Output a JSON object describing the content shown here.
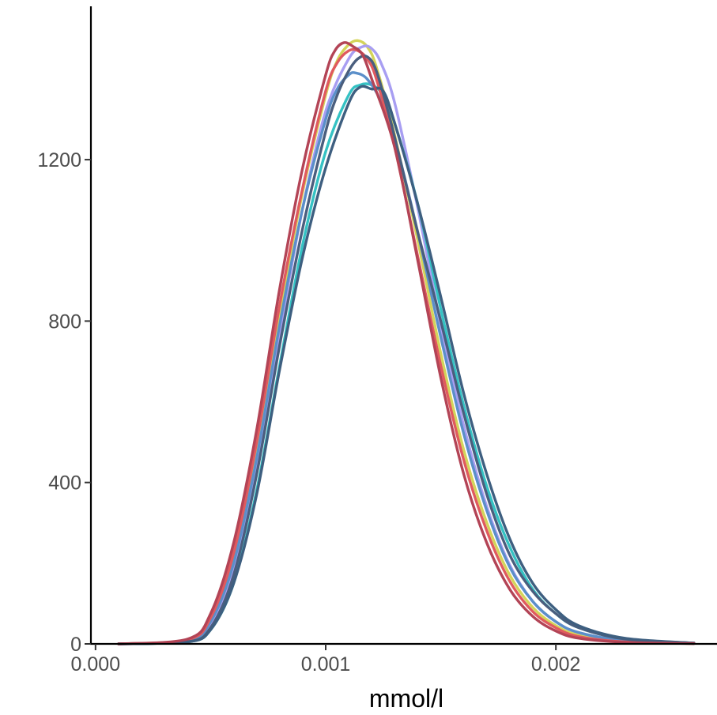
{
  "chart_data": {
    "type": "line",
    "title": "",
    "xlabel": "mmol/l",
    "ylabel": "",
    "xlim": [
      -2e-05,
      0.0027
    ],
    "ylim": [
      0,
      1580
    ],
    "x_ticks": [
      0.0,
      0.001,
      0.002
    ],
    "x_tick_labels": [
      "0.000",
      "0.001",
      "0.002"
    ],
    "y_ticks": [
      0,
      400,
      800,
      1200
    ],
    "y_tick_labels": [
      "0",
      "400",
      "800",
      "1200"
    ],
    "grid": false,
    "legend": "none",
    "series": [
      {
        "color": "#d4d45a",
        "x": [
          0.0001,
          0.0004,
          0.0005,
          0.0006,
          0.0007,
          0.0008,
          0.0009,
          0.001,
          0.00105,
          0.0011,
          0.00114,
          0.00118,
          0.00122,
          0.0013,
          0.0014,
          0.0015,
          0.0016,
          0.0017,
          0.0018,
          0.0019,
          0.002,
          0.0021,
          0.0023,
          0.0026
        ],
        "y": [
          0,
          10,
          60,
          210,
          480,
          820,
          1120,
          1360,
          1445,
          1485,
          1495,
          1480,
          1430,
          1260,
          1000,
          720,
          480,
          300,
          170,
          90,
          45,
          22,
          6,
          1
        ]
      },
      {
        "color": "#a89ef2",
        "x": [
          0.0001,
          0.0004,
          0.0005,
          0.0006,
          0.0007,
          0.0008,
          0.0009,
          0.001,
          0.0011,
          0.00116,
          0.0012,
          0.00124,
          0.0013,
          0.0014,
          0.0015,
          0.0016,
          0.0017,
          0.0018,
          0.0019,
          0.002,
          0.0021,
          0.0023,
          0.0026
        ],
        "y": [
          0,
          6,
          45,
          180,
          440,
          770,
          1080,
          1320,
          1450,
          1480,
          1475,
          1440,
          1340,
          1080,
          790,
          540,
          340,
          195,
          105,
          55,
          28,
          8,
          1
        ]
      },
      {
        "color": "#35c2c4",
        "x": [
          0.0001,
          0.0004,
          0.0005,
          0.0006,
          0.0007,
          0.0008,
          0.0009,
          0.001,
          0.0011,
          0.00115,
          0.0012,
          0.00125,
          0.0013,
          0.0014,
          0.0015,
          0.0016,
          0.0017,
          0.0018,
          0.0019,
          0.002,
          0.0021,
          0.0023,
          0.0026
        ],
        "y": [
          0,
          5,
          35,
          150,
          380,
          690,
          990,
          1220,
          1360,
          1385,
          1385,
          1360,
          1290,
          1090,
          830,
          590,
          390,
          240,
          135,
          75,
          40,
          12,
          2
        ]
      },
      {
        "color": "#5b8fc9",
        "x": [
          0.0001,
          0.0004,
          0.0005,
          0.0006,
          0.0007,
          0.0008,
          0.0009,
          0.001,
          0.00105,
          0.0011,
          0.00113,
          0.00118,
          0.00124,
          0.0013,
          0.0014,
          0.0015,
          0.0016,
          0.0017,
          0.0018,
          0.0019,
          0.002,
          0.0021,
          0.0023,
          0.0026
        ],
        "y": [
          0,
          8,
          55,
          200,
          460,
          790,
          1080,
          1300,
          1375,
          1410,
          1415,
          1400,
          1345,
          1250,
          1020,
          760,
          520,
          330,
          190,
          105,
          55,
          28,
          8,
          1
        ]
      },
      {
        "color": "#e05a5e",
        "x": [
          0.0001,
          0.0004,
          0.0005,
          0.0006,
          0.0007,
          0.0008,
          0.0009,
          0.001,
          0.00105,
          0.0011,
          0.00114,
          0.00118,
          0.00122,
          0.0013,
          0.0014,
          0.0015,
          0.0016,
          0.0017,
          0.0018,
          0.0019,
          0.002,
          0.0021,
          0.0023,
          0.0026
        ],
        "y": [
          0,
          10,
          65,
          225,
          500,
          840,
          1130,
          1370,
          1440,
          1470,
          1470,
          1450,
          1400,
          1230,
          960,
          690,
          455,
          280,
          155,
          80,
          40,
          18,
          5,
          1
        ]
      },
      {
        "color": "#4a5e7e",
        "x": [
          0.0001,
          0.0004,
          0.0005,
          0.0006,
          0.0007,
          0.0008,
          0.0009,
          0.001,
          0.00105,
          0.0011,
          0.00114,
          0.00118,
          0.00122,
          0.00128,
          0.00134,
          0.0014,
          0.0015,
          0.0016,
          0.0017,
          0.0018,
          0.0019,
          0.002,
          0.0021,
          0.0023,
          0.0026
        ],
        "y": [
          0,
          5,
          40,
          170,
          420,
          740,
          1030,
          1270,
          1360,
          1420,
          1450,
          1455,
          1420,
          1300,
          1160,
          1020,
          800,
          570,
          370,
          220,
          130,
          75,
          40,
          12,
          2
        ]
      },
      {
        "color": "#3e5f80",
        "x": [
          0.0001,
          0.0004,
          0.0005,
          0.0006,
          0.0007,
          0.0008,
          0.0009,
          0.001,
          0.0011,
          0.00115,
          0.0012,
          0.00125,
          0.0013,
          0.0014,
          0.0015,
          0.0016,
          0.0017,
          0.0018,
          0.0019,
          0.002,
          0.0021,
          0.0023,
          0.0026
        ],
        "y": [
          0,
          5,
          35,
          150,
          370,
          680,
          960,
          1180,
          1340,
          1380,
          1375,
          1370,
          1290,
          1090,
          860,
          620,
          420,
          260,
          150,
          85,
          45,
          14,
          2
        ]
      },
      {
        "color": "#b34456",
        "x": [
          0.0001,
          0.0004,
          0.0005,
          0.0006,
          0.0007,
          0.0008,
          0.0009,
          0.001,
          0.00104,
          0.00108,
          0.00112,
          0.00116,
          0.0012,
          0.0013,
          0.0014,
          0.0015,
          0.0016,
          0.0017,
          0.0018,
          0.0019,
          0.002,
          0.0021,
          0.0023,
          0.0026
        ],
        "y": [
          0,
          12,
          75,
          250,
          530,
          880,
          1180,
          1410,
          1470,
          1490,
          1480,
          1460,
          1400,
          1230,
          950,
          660,
          420,
          250,
          135,
          68,
          32,
          14,
          4,
          1
        ]
      }
    ]
  }
}
